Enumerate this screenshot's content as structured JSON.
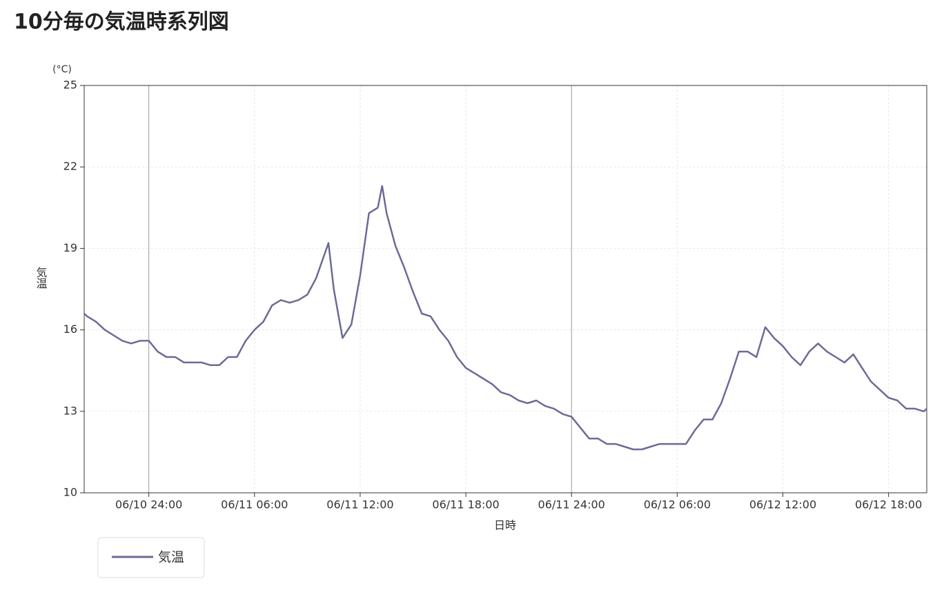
{
  "chart_data": {
    "type": "line",
    "title": "10分毎の気温時系列図",
    "y_unit": "(°C)",
    "y_label": "気温",
    "x_label": "日時",
    "x": [
      20.33,
      20.5,
      21,
      21.5,
      22,
      22.5,
      23,
      23.5,
      24,
      24.5,
      25,
      25.5,
      26,
      26.5,
      27,
      27.5,
      28,
      28.5,
      29,
      29.5,
      30,
      30.5,
      31,
      31.5,
      32,
      32.5,
      33,
      33.5,
      34.2,
      34.5,
      35,
      35.5,
      36,
      36.5,
      37,
      37.25,
      37.5,
      38,
      38.5,
      39,
      39.5,
      40,
      40.5,
      41,
      41.5,
      42,
      42.5,
      43,
      43.5,
      44,
      44.5,
      45,
      45.5,
      46,
      46.5,
      47,
      47.5,
      48,
      48.5,
      49,
      49.5,
      50,
      50.5,
      51,
      51.5,
      52,
      52.5,
      53,
      53.5,
      54,
      54.5,
      55,
      55.5,
      56,
      56.5,
      57,
      57.5,
      58,
      58.5,
      59,
      59.5,
      60,
      60.5,
      61,
      61.5,
      62,
      62.5,
      63,
      63.5,
      64,
      64.5,
      65,
      65.5,
      66,
      66.5,
      67,
      67.5,
      68,
      68.17
    ],
    "series": [
      {
        "name": "気温",
        "color": "#6b6a96",
        "values": [
          16.6,
          16.5,
          16.3,
          16.0,
          15.8,
          15.6,
          15.5,
          15.6,
          15.6,
          15.2,
          15.0,
          15.0,
          14.8,
          14.8,
          14.8,
          14.7,
          14.7,
          15.0,
          15.0,
          15.6,
          16.0,
          16.3,
          16.9,
          17.1,
          17.0,
          17.1,
          17.3,
          17.9,
          19.2,
          17.5,
          15.7,
          16.2,
          18.0,
          20.3,
          20.5,
          21.3,
          20.3,
          19.1,
          18.3,
          17.4,
          16.6,
          16.5,
          16.0,
          15.6,
          15.0,
          14.6,
          14.4,
          14.2,
          14.0,
          13.7,
          13.6,
          13.4,
          13.3,
          13.4,
          13.2,
          13.1,
          12.9,
          12.8,
          12.4,
          12.0,
          12.0,
          11.8,
          11.8,
          11.7,
          11.6,
          11.6,
          11.7,
          11.8,
          11.8,
          11.8,
          11.8,
          12.3,
          12.7,
          12.7,
          13.3,
          14.2,
          15.2,
          15.2,
          15.0,
          16.1,
          15.7,
          15.4,
          15.0,
          14.7,
          15.2,
          15.5,
          15.2,
          15.0,
          14.8,
          15.1,
          14.6,
          14.1,
          13.8,
          13.5,
          13.4,
          13.1,
          13.1,
          13.0,
          13.1
        ]
      }
    ],
    "xlim": [
      20.33,
      68.17
    ],
    "xticks": [
      {
        "value": 24,
        "label": "06/10 24:00"
      },
      {
        "value": 30,
        "label": "06/11 06:00"
      },
      {
        "value": 36,
        "label": "06/11 12:00"
      },
      {
        "value": 42,
        "label": "06/11 18:00"
      },
      {
        "value": 48,
        "label": "06/11 24:00"
      },
      {
        "value": 54,
        "label": "06/12 06:00"
      },
      {
        "value": 60,
        "label": "06/12 12:00"
      },
      {
        "value": 66,
        "label": "06/12 18:00"
      }
    ],
    "ylim": [
      10,
      25
    ],
    "yticks": [
      10,
      13,
      16,
      19,
      22,
      25
    ],
    "grid": true
  }
}
